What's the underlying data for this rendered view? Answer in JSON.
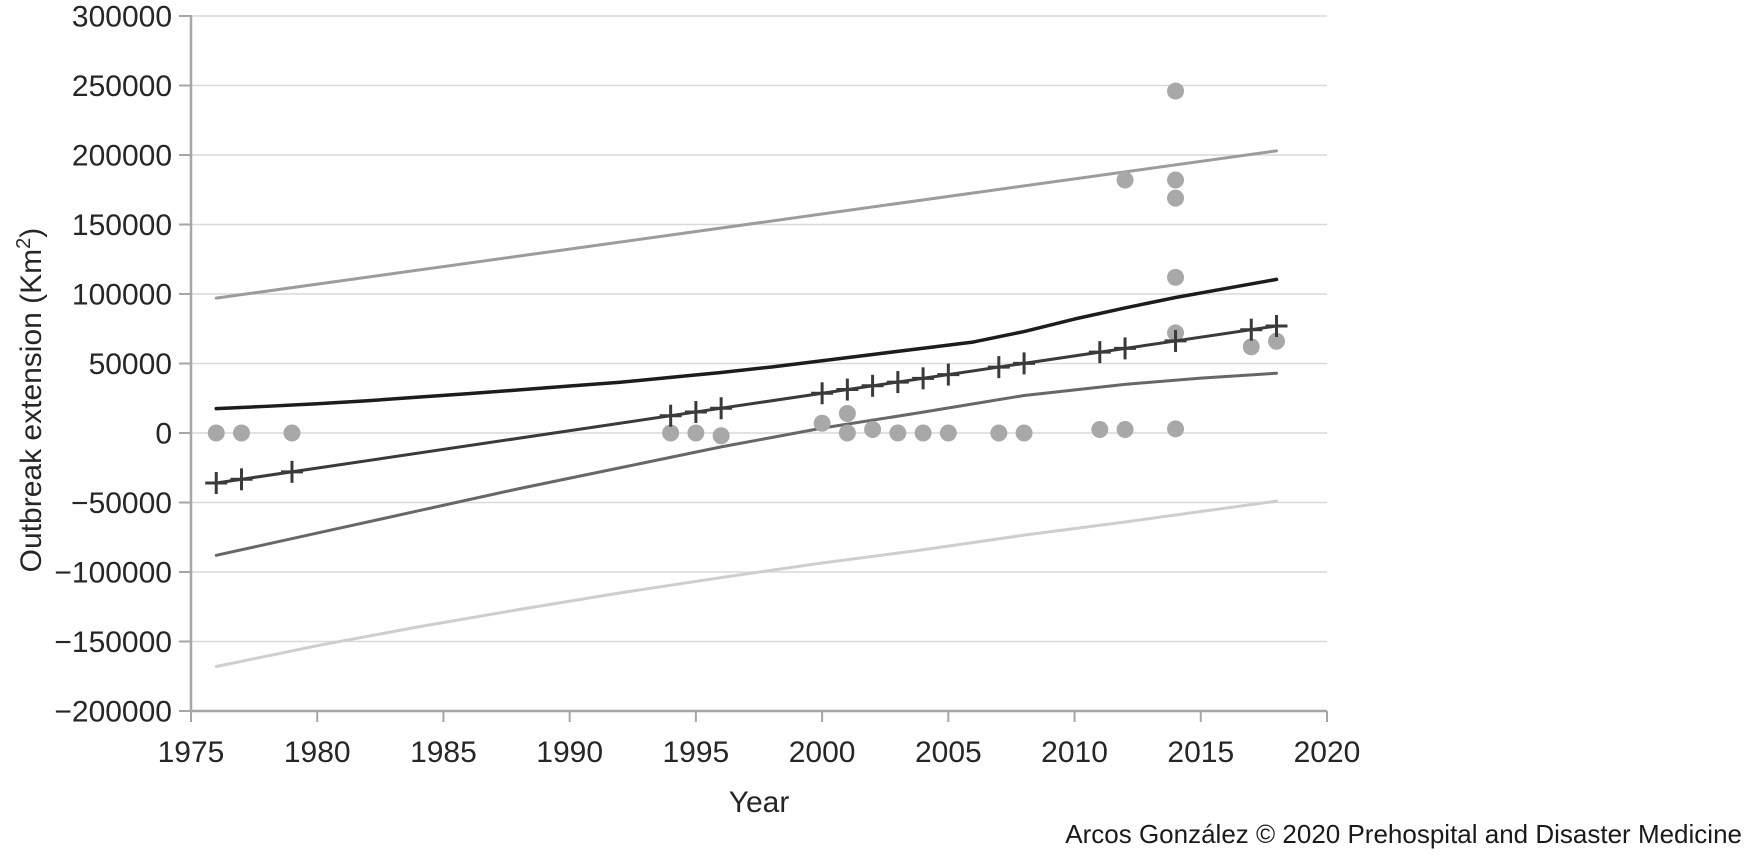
{
  "figure": {
    "attribution": "Arcos González © 2020 Prehospital and Disaster Medicine"
  },
  "chart_data": {
    "type": "scatter",
    "title": "",
    "xlabel": "Year",
    "ylabel": {
      "prefix": "Outbreak extension (Km",
      "superscript": "2",
      "suffix": ")"
    },
    "xlim": [
      1975,
      2020
    ],
    "ylim": [
      -200000,
      300000
    ],
    "grid": "horizontal-light",
    "legend": "none",
    "x_ticks": [
      {
        "v": 1975,
        "label": "1975"
      },
      {
        "v": 1980,
        "label": "1980"
      },
      {
        "v": 1985,
        "label": "1985"
      },
      {
        "v": 1990,
        "label": "1990"
      },
      {
        "v": 1995,
        "label": "1995"
      },
      {
        "v": 2000,
        "label": "2000"
      },
      {
        "v": 2005,
        "label": "2005"
      },
      {
        "v": 2010,
        "label": "2010"
      },
      {
        "v": 2015,
        "label": "2015"
      },
      {
        "v": 2020,
        "label": "2020"
      }
    ],
    "y_ticks": [
      {
        "v": 300000,
        "label": "300000"
      },
      {
        "v": 250000,
        "label": "250000"
      },
      {
        "v": 200000,
        "label": "200000"
      },
      {
        "v": 150000,
        "label": "150000"
      },
      {
        "v": 100000,
        "label": "100000"
      },
      {
        "v": 50000,
        "label": "50000"
      },
      {
        "v": 0,
        "label": "0"
      },
      {
        "v": -50000,
        "label": "−50000"
      },
      {
        "v": -100000,
        "label": "−100000"
      },
      {
        "v": -150000,
        "label": "−150000"
      },
      {
        "v": -200000,
        "label": "−200000"
      }
    ],
    "colors": {
      "scatter_dot": "#a8a8a8",
      "gridline": "#d9d9d9",
      "axis": "#a6a6a6",
      "tick_text": "#262626"
    },
    "scatter_points": [
      {
        "year": 1976,
        "km2": 0
      },
      {
        "year": 1977,
        "km2": 0
      },
      {
        "year": 1979,
        "km2": 0
      },
      {
        "year": 1994,
        "km2": 0
      },
      {
        "year": 1995,
        "km2": 0
      },
      {
        "year": 1996,
        "km2": -2000
      },
      {
        "year": 2000,
        "km2": 7000
      },
      {
        "year": 2001,
        "km2": 14000
      },
      {
        "year": 2001,
        "km2": 0
      },
      {
        "year": 2002,
        "km2": 2500
      },
      {
        "year": 2003,
        "km2": 0
      },
      {
        "year": 2004,
        "km2": 0
      },
      {
        "year": 2005,
        "km2": 0
      },
      {
        "year": 2007,
        "km2": 0
      },
      {
        "year": 2008,
        "km2": 0
      },
      {
        "year": 2011,
        "km2": 2500
      },
      {
        "year": 2012,
        "km2": 2500
      },
      {
        "year": 2012,
        "km2": 182000
      },
      {
        "year": 2014,
        "km2": 246000
      },
      {
        "year": 2014,
        "km2": 182000
      },
      {
        "year": 2014,
        "km2": 169000
      },
      {
        "year": 2014,
        "km2": 112000
      },
      {
        "year": 2014,
        "km2": 72000
      },
      {
        "year": 2014,
        "km2": 3000
      },
      {
        "year": 2017,
        "km2": 62000
      },
      {
        "year": 2018,
        "km2": 66000
      }
    ],
    "trend_lines": [
      {
        "name": "upper-confidence-line",
        "color": "#9c9c9c",
        "width": 3,
        "points": [
          [
            1976,
            97000
          ],
          [
            2018,
            203000
          ]
        ]
      },
      {
        "name": "lower-confidence-line",
        "color": "#cecece",
        "width": 3,
        "points": [
          [
            1976,
            -168000
          ],
          [
            1980,
            -153000
          ],
          [
            1984,
            -139500
          ],
          [
            1988,
            -127000
          ],
          [
            1992,
            -115000
          ],
          [
            1996,
            -104000
          ],
          [
            2000,
            -93500
          ],
          [
            2004,
            -84000
          ],
          [
            2008,
            -73500
          ],
          [
            2012,
            -64000
          ],
          [
            2015,
            -56500
          ],
          [
            2018,
            -49000
          ]
        ]
      },
      {
        "name": "lower-mean-band-line",
        "color": "#676767",
        "width": 3,
        "points": [
          [
            1976,
            -88000
          ],
          [
            1980,
            -72000
          ],
          [
            1984,
            -56000
          ],
          [
            1988,
            -40000
          ],
          [
            1992,
            -25000
          ],
          [
            1996,
            -10000
          ],
          [
            2000,
            3500
          ],
          [
            2004,
            15000
          ],
          [
            2008,
            27000
          ],
          [
            2012,
            35000
          ],
          [
            2015,
            39500
          ],
          [
            2018,
            43000
          ]
        ]
      },
      {
        "name": "fitted-curve",
        "color": "#1c1c1c",
        "width": 3.5,
        "points": [
          [
            1976,
            17500
          ],
          [
            1978,
            19200
          ],
          [
            1980,
            21000
          ],
          [
            1982,
            23200
          ],
          [
            1984,
            25800
          ],
          [
            1986,
            28300
          ],
          [
            1988,
            31000
          ],
          [
            1990,
            33800
          ],
          [
            1992,
            36500
          ],
          [
            1994,
            40000
          ],
          [
            1996,
            43500
          ],
          [
            1998,
            47500
          ],
          [
            2000,
            52000
          ],
          [
            2002,
            56500
          ],
          [
            2004,
            61000
          ],
          [
            2006,
            65500
          ],
          [
            2008,
            73000
          ],
          [
            2010,
            82000
          ],
          [
            2012,
            90000
          ],
          [
            2014,
            97500
          ],
          [
            2016,
            104000
          ],
          [
            2018,
            110500
          ]
        ]
      },
      {
        "name": "linear-trend-line",
        "color": "#3a3a3a",
        "width": 3,
        "marker": "plus",
        "points": [
          [
            1976,
            -36000
          ],
          [
            2018,
            77000
          ]
        ],
        "marker_years": [
          1976,
          1977,
          1979,
          1994,
          1995,
          1996,
          2000,
          2001,
          2002,
          2003,
          2004,
          2005,
          2007,
          2008,
          2011,
          2012,
          2014,
          2017,
          2018
        ]
      }
    ]
  }
}
